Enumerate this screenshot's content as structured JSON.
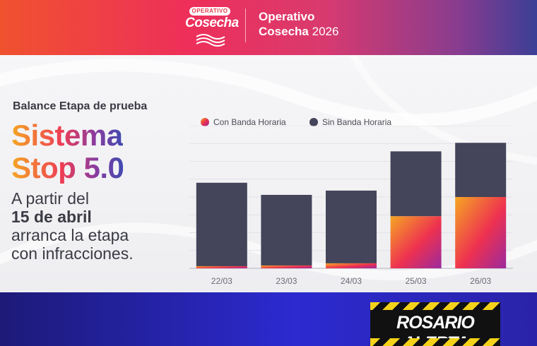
{
  "header": {
    "logo_top": "OPERATIVO",
    "logo_main": "Cosecha",
    "title_line1": "Operativo",
    "title_line2_bold": "Cosecha",
    "title_line2_year": "2026"
  },
  "left": {
    "subtitle": "Balance Etapa de prueba",
    "headline_line1": "Sistema",
    "headline_line2": "Stop 5.0",
    "desc_line1": "A partir del",
    "desc_line2": "15 de abril",
    "desc_line3": "arranca la etapa",
    "desc_line4": "con infracciones."
  },
  "footer": {
    "alert_label": "ROSARIO ALERTA"
  },
  "colors": {
    "sin_banda": "#44445a",
    "con_banda_start": "#f5a623",
    "con_banda_end": "#9b2a9e"
  },
  "chart_data": {
    "type": "bar",
    "stacked": true,
    "categories": [
      "22/03",
      "23/03",
      "24/03",
      "25/03",
      "26/03"
    ],
    "series": [
      {
        "name": "Con Banda Horaria",
        "values": [
          3,
          4,
          7,
          73,
          100
        ]
      },
      {
        "name": "Sin Banda Horaria",
        "values": [
          117,
          99,
          102,
          91,
          76
        ]
      }
    ],
    "ylim": [
      0,
      200
    ],
    "grid": true,
    "legend": "top-left",
    "title": "",
    "xlabel": "",
    "ylabel": ""
  }
}
